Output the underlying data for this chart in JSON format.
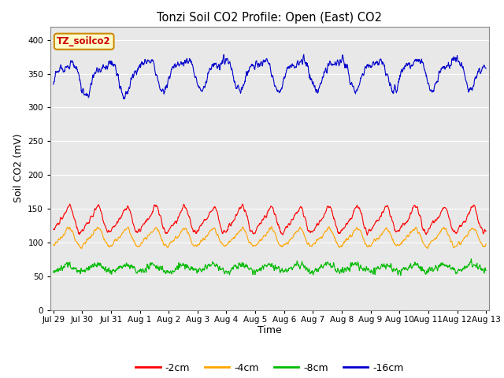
{
  "title": "Tonzi Soil CO2 Profile: Open (East) CO2",
  "ylabel": "Soil CO2 (mV)",
  "xlabel": "Time",
  "label_text": "TZ_soilco2",
  "ylim": [
    0,
    420
  ],
  "yticks": [
    0,
    50,
    100,
    150,
    200,
    250,
    300,
    350,
    400
  ],
  "bg_color": "#e8e8e8",
  "series": {
    "-2cm": {
      "color": "#ff0000"
    },
    "-4cm": {
      "color": "#ffa500"
    },
    "-8cm": {
      "color": "#00bb00"
    },
    "-16cm": {
      "color": "#0000cc"
    }
  },
  "x_tick_labels": [
    "Jul 29",
    "Jul 30",
    "Jul 31",
    "Aug 1",
    "Aug 2",
    "Aug 3",
    "Aug 4",
    "Aug 5",
    "Aug 6",
    "Aug 7",
    "Aug 8",
    "Aug 9",
    "Aug 10",
    "Aug 11",
    "Aug 12",
    "Aug 13"
  ],
  "n_points": 1440,
  "legend_order": [
    "-2cm",
    "-4cm",
    "-8cm",
    "-16cm"
  ]
}
